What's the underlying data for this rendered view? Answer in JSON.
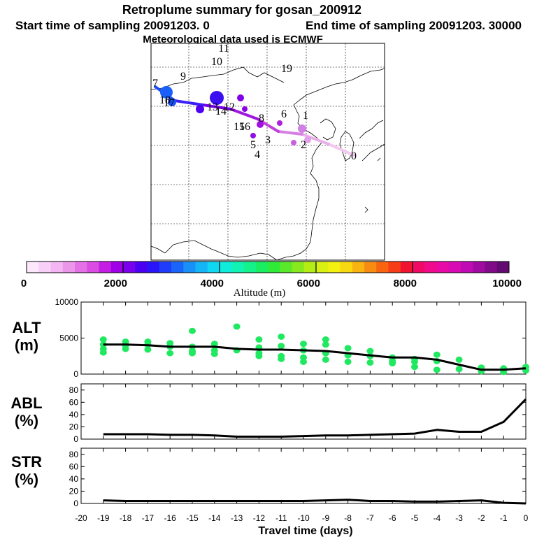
{
  "title": {
    "line1": "Retroplume summary for gosan_200912",
    "line2_start": "Start time of sampling 20091203.    0",
    "line2_end": "End time of sampling 20091203. 30000",
    "line3": "Meteorological data used is ECMWF"
  },
  "map": {
    "trajectory_labels": [
      {
        "text": "0",
        "day": 0
      },
      {
        "text": "1",
        "day": -1
      },
      {
        "text": "2",
        "day": -2
      },
      {
        "text": "3",
        "day": -3
      },
      {
        "text": "4",
        "day": -4
      },
      {
        "text": "5",
        "day": -5
      },
      {
        "text": "6",
        "day": -6
      },
      {
        "text": "7",
        "day": -7
      },
      {
        "text": "8",
        "day": -8
      },
      {
        "text": "9",
        "day": -9
      },
      {
        "text": "10",
        "day": -10
      },
      {
        "text": "11",
        "day": -11
      },
      {
        "text": "12",
        "day": -12
      },
      {
        "text": "13",
        "day": -13
      },
      {
        "text": "14",
        "day": -14
      },
      {
        "text": "15",
        "day": -15
      },
      {
        "text": "16",
        "day": -16
      },
      {
        "text": "17",
        "day": -17
      },
      {
        "text": "18",
        "day": -18
      },
      {
        "text": "19",
        "day": -19
      }
    ]
  },
  "colorbar": {
    "labels": [
      "0",
      "2000",
      "4000",
      "6000",
      "8000",
      "10000"
    ],
    "title": "Altitude (m)",
    "colors": [
      "#fde8fb",
      "#f8d0f7",
      "#f3b6f2",
      "#ec96ea",
      "#e472e6",
      "#d94de2",
      "#c31ee2",
      "#a000e8",
      "#7a00ee",
      "#4b00f2",
      "#2a14f8",
      "#1f3cfa",
      "#1a64fa",
      "#1890f8",
      "#14b6f6",
      "#10d8f2",
      "#10ecdc",
      "#12f2b4",
      "#14f28c",
      "#18ee60",
      "#30ea3a",
      "#5ae82a",
      "#88e81e",
      "#b4ec16",
      "#d8f012",
      "#f4f010",
      "#f8d810",
      "#f8b410",
      "#f88c10",
      "#f86410",
      "#f83c18",
      "#f01430",
      "#f00a66",
      "#f00a8c",
      "#e80aa6",
      "#d80ab4",
      "#c00ab4",
      "#a00aa0",
      "#800a88",
      "#620a72"
    ]
  },
  "panels": {
    "alt": {
      "label1": "ALT",
      "label2": "(m)",
      "yticks": [
        "0",
        "5000",
        "10000"
      ]
    },
    "abl": {
      "label1": "ABL",
      "label2": "(%)",
      "yticks": [
        "0",
        "20",
        "40",
        "60",
        "80"
      ]
    },
    "str": {
      "label1": "STR",
      "label2": "(%)",
      "yticks": [
        "0",
        "20",
        "40",
        "60",
        "80"
      ]
    }
  },
  "xaxis": {
    "title": "Travel time (days)",
    "ticks": [
      "-20",
      "-19",
      "-18",
      "-17",
      "-16",
      "-15",
      "-14",
      "-13",
      "-12",
      "-11",
      "-10",
      "-9",
      "-8",
      "-7",
      "-6",
      "-5",
      "-4",
      "-3",
      "-2",
      "-1",
      "0"
    ]
  },
  "chart_data": [
    {
      "type": "line",
      "title": "ALT",
      "ylabel": "ALT (m)",
      "xlabel": "Travel time (days)",
      "xlim": [
        -20,
        0
      ],
      "ylim": [
        0,
        10000
      ],
      "x": [
        -19,
        -18,
        -17,
        -16,
        -15,
        -14,
        -13,
        -12,
        -11,
        -10,
        -9,
        -8,
        -7,
        -6,
        -5,
        -4,
        -3,
        -2,
        -1,
        0
      ],
      "values": [
        4100,
        4100,
        4000,
        3800,
        3800,
        3800,
        3500,
        3400,
        3400,
        3300,
        3200,
        2900,
        2600,
        2300,
        2300,
        2000,
        1300,
        600,
        600,
        800
      ],
      "scatter_color": "#20e860",
      "scatter_points": [
        [
          -19,
          4800
        ],
        [
          -19,
          4100
        ],
        [
          -19,
          3500
        ],
        [
          -19,
          3000
        ],
        [
          -18,
          4500
        ],
        [
          -18,
          4000
        ],
        [
          -18,
          3500
        ],
        [
          -17,
          4500
        ],
        [
          -17,
          4100
        ],
        [
          -17,
          3400
        ],
        [
          -16,
          4300
        ],
        [
          -16,
          3800
        ],
        [
          -16,
          2900
        ],
        [
          -15,
          3800
        ],
        [
          -15,
          3200
        ],
        [
          -15,
          2900
        ],
        [
          -15,
          6000
        ],
        [
          -14,
          4200
        ],
        [
          -14,
          3300
        ],
        [
          -14,
          2800
        ],
        [
          -13,
          3300
        ],
        [
          -13,
          6600
        ],
        [
          -12,
          4800
        ],
        [
          -12,
          3700
        ],
        [
          -12,
          2500
        ],
        [
          -12,
          2900
        ],
        [
          -11,
          5200
        ],
        [
          -11,
          3900
        ],
        [
          -11,
          2500
        ],
        [
          -11,
          2100
        ],
        [
          -10,
          4200
        ],
        [
          -10,
          3300
        ],
        [
          -10,
          2300
        ],
        [
          -10,
          1700
        ],
        [
          -9,
          4800
        ],
        [
          -9,
          4100
        ],
        [
          -9,
          2900
        ],
        [
          -9,
          2000
        ],
        [
          -8,
          3600
        ],
        [
          -8,
          2600
        ],
        [
          -8,
          1700
        ],
        [
          -7,
          3200
        ],
        [
          -7,
          2500
        ],
        [
          -7,
          1600
        ],
        [
          -6,
          2300
        ],
        [
          -6,
          1800
        ],
        [
          -6,
          1500
        ],
        [
          -5,
          2100
        ],
        [
          -5,
          1700
        ],
        [
          -5,
          1000
        ],
        [
          -4,
          2700
        ],
        [
          -4,
          1800
        ],
        [
          -4,
          600
        ],
        [
          -3,
          2000
        ],
        [
          -3,
          700
        ],
        [
          -2,
          900
        ],
        [
          -2,
          400
        ],
        [
          -1,
          800
        ],
        [
          -1,
          300
        ],
        [
          0,
          1000
        ],
        [
          0,
          500
        ]
      ]
    },
    {
      "type": "line",
      "title": "ABL",
      "ylabel": "ABL (%)",
      "xlabel": "Travel time (days)",
      "xlim": [
        -20,
        0
      ],
      "ylim": [
        0,
        90
      ],
      "x": [
        -19,
        -18,
        -17,
        -16,
        -15,
        -14,
        -13,
        -12,
        -11,
        -10,
        -9,
        -8,
        -7,
        -6,
        -5,
        -4,
        -3,
        -2,
        -1,
        0
      ],
      "values": [
        8,
        8,
        8,
        7,
        7,
        6,
        4,
        4,
        4,
        5,
        6,
        6,
        7,
        8,
        9,
        15,
        12,
        12,
        28,
        65
      ]
    },
    {
      "type": "line",
      "title": "STR",
      "ylabel": "STR (%)",
      "xlabel": "Travel time (days)",
      "xlim": [
        -20,
        0
      ],
      "ylim": [
        0,
        90
      ],
      "x": [
        -19,
        -18,
        -17,
        -16,
        -15,
        -14,
        -13,
        -12,
        -11,
        -10,
        -9,
        -8,
        -7,
        -6,
        -5,
        -4,
        -3,
        -2,
        -1,
        0
      ],
      "values": [
        5,
        4,
        4,
        4,
        4,
        4,
        4,
        4,
        4,
        4,
        5,
        6,
        4,
        4,
        3,
        3,
        4,
        5,
        1,
        0
      ]
    }
  ]
}
